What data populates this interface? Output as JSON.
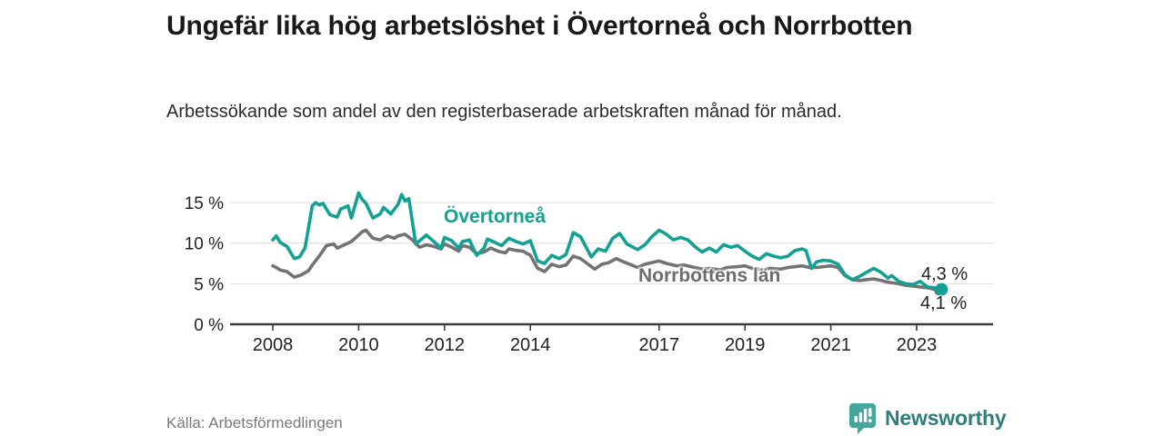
{
  "header": {
    "title": "Ungefär lika hög arbetslöshet i Övertorneå och Norrbotten",
    "subtitle": "Arbetssökande som andel av den registerbaserade arbetskraften månad för månad."
  },
  "footer": {
    "source": "Källa: Arbetsförmedlingen",
    "brand_name": "Newsworthy",
    "brand_icon": "bar-chart-speech-bubble-icon"
  },
  "colors": {
    "accent_teal": "#12a192",
    "series_gray": "#737373",
    "axis": "#3a3a3a",
    "grid": "#dcdcdc",
    "tick_text": "#222222",
    "brand_teal": "#45a69b",
    "brand_text": "#317e79"
  },
  "chart_data": {
    "type": "line",
    "x_unit": "year (monthly observations)",
    "ylabel": "",
    "xlabel": "",
    "ylim": [
      0,
      17
    ],
    "yticks": [
      0,
      5,
      10,
      15
    ],
    "ytick_labels": [
      "0 %",
      "5 %",
      "10 %",
      "15 %"
    ],
    "xticks": [
      2008,
      2010,
      2012,
      2014,
      2017,
      2019,
      2021,
      2023
    ],
    "grid": "horizontal",
    "legend": "inline-labels",
    "series": [
      {
        "name": "Övertorneå",
        "color": "#12a192",
        "end_label": "4,3 %",
        "end_value": 4.3,
        "points": [
          [
            2008.0,
            10.4
          ],
          [
            2008.08,
            10.9
          ],
          [
            2008.17,
            10.1
          ],
          [
            2008.33,
            9.6
          ],
          [
            2008.5,
            8.1
          ],
          [
            2008.62,
            8.3
          ],
          [
            2008.75,
            9.4
          ],
          [
            2008.92,
            14.6
          ],
          [
            2009.0,
            15.0
          ],
          [
            2009.08,
            14.7
          ],
          [
            2009.17,
            14.9
          ],
          [
            2009.33,
            13.5
          ],
          [
            2009.5,
            13.2
          ],
          [
            2009.58,
            14.2
          ],
          [
            2009.75,
            14.6
          ],
          [
            2009.83,
            13.1
          ],
          [
            2010.0,
            16.2
          ],
          [
            2010.08,
            15.4
          ],
          [
            2010.17,
            14.9
          ],
          [
            2010.33,
            13.1
          ],
          [
            2010.5,
            13.6
          ],
          [
            2010.58,
            14.4
          ],
          [
            2010.75,
            13.6
          ],
          [
            2010.92,
            14.8
          ],
          [
            2011.0,
            16.0
          ],
          [
            2011.08,
            15.2
          ],
          [
            2011.17,
            15.5
          ],
          [
            2011.33,
            9.9
          ],
          [
            2011.42,
            10.3
          ],
          [
            2011.58,
            11.0
          ],
          [
            2011.75,
            10.2
          ],
          [
            2011.92,
            9.4
          ],
          [
            2012.0,
            10.7
          ],
          [
            2012.17,
            10.3
          ],
          [
            2012.33,
            9.4
          ],
          [
            2012.42,
            10.2
          ],
          [
            2012.58,
            10.4
          ],
          [
            2012.75,
            8.5
          ],
          [
            2012.92,
            9.4
          ],
          [
            2013.0,
            10.5
          ],
          [
            2013.17,
            10.1
          ],
          [
            2013.33,
            9.7
          ],
          [
            2013.5,
            10.6
          ],
          [
            2013.67,
            10.2
          ],
          [
            2013.83,
            9.9
          ],
          [
            2014.0,
            10.3
          ],
          [
            2014.17,
            7.8
          ],
          [
            2014.33,
            7.5
          ],
          [
            2014.5,
            8.5
          ],
          [
            2014.67,
            8.1
          ],
          [
            2014.83,
            8.6
          ],
          [
            2015.0,
            11.3
          ],
          [
            2015.17,
            10.8
          ],
          [
            2015.42,
            8.3
          ],
          [
            2015.58,
            9.3
          ],
          [
            2015.75,
            9.0
          ],
          [
            2015.92,
            10.6
          ],
          [
            2016.08,
            11.2
          ],
          [
            2016.25,
            9.9
          ],
          [
            2016.5,
            9.2
          ],
          [
            2016.67,
            9.8
          ],
          [
            2016.83,
            10.8
          ],
          [
            2017.0,
            11.6
          ],
          [
            2017.17,
            11.1
          ],
          [
            2017.33,
            10.4
          ],
          [
            2017.5,
            10.7
          ],
          [
            2017.67,
            10.4
          ],
          [
            2017.83,
            9.6
          ],
          [
            2018.0,
            8.9
          ],
          [
            2018.17,
            9.4
          ],
          [
            2018.33,
            8.9
          ],
          [
            2018.5,
            9.8
          ],
          [
            2018.67,
            9.5
          ],
          [
            2018.83,
            9.7
          ],
          [
            2019.0,
            9.0
          ],
          [
            2019.17,
            8.4
          ],
          [
            2019.33,
            8.0
          ],
          [
            2019.5,
            8.7
          ],
          [
            2019.67,
            8.4
          ],
          [
            2019.83,
            8.2
          ],
          [
            2020.0,
            8.4
          ],
          [
            2020.17,
            9.1
          ],
          [
            2020.33,
            9.3
          ],
          [
            2020.42,
            9.1
          ],
          [
            2020.55,
            6.9
          ],
          [
            2020.67,
            7.7
          ],
          [
            2020.83,
            7.9
          ],
          [
            2021.0,
            7.8
          ],
          [
            2021.17,
            7.4
          ],
          [
            2021.33,
            6.1
          ],
          [
            2021.5,
            5.5
          ],
          [
            2021.67,
            5.9
          ],
          [
            2021.83,
            6.4
          ],
          [
            2022.0,
            6.9
          ],
          [
            2022.17,
            6.4
          ],
          [
            2022.33,
            5.7
          ],
          [
            2022.42,
            6.0
          ],
          [
            2022.58,
            5.3
          ],
          [
            2022.75,
            5.0
          ],
          [
            2022.92,
            4.9
          ],
          [
            2023.08,
            5.3
          ],
          [
            2023.25,
            4.6
          ],
          [
            2023.42,
            4.5
          ],
          [
            2023.58,
            4.3
          ]
        ]
      },
      {
        "name": "Norrbottens län",
        "color": "#737373",
        "end_label": "4,1 %",
        "end_value": 4.1,
        "points": [
          [
            2008.0,
            7.2
          ],
          [
            2008.08,
            7.0
          ],
          [
            2008.17,
            6.7
          ],
          [
            2008.33,
            6.5
          ],
          [
            2008.5,
            5.8
          ],
          [
            2008.67,
            6.1
          ],
          [
            2008.83,
            6.6
          ],
          [
            2008.92,
            7.3
          ],
          [
            2009.08,
            8.4
          ],
          [
            2009.25,
            9.7
          ],
          [
            2009.42,
            9.9
          ],
          [
            2009.5,
            9.4
          ],
          [
            2009.67,
            9.8
          ],
          [
            2009.83,
            10.2
          ],
          [
            2009.92,
            10.6
          ],
          [
            2010.08,
            11.4
          ],
          [
            2010.17,
            11.6
          ],
          [
            2010.33,
            10.6
          ],
          [
            2010.5,
            10.4
          ],
          [
            2010.67,
            10.9
          ],
          [
            2010.83,
            10.6
          ],
          [
            2010.92,
            10.9
          ],
          [
            2011.08,
            11.1
          ],
          [
            2011.25,
            10.4
          ],
          [
            2011.42,
            9.5
          ],
          [
            2011.58,
            9.8
          ],
          [
            2011.75,
            9.6
          ],
          [
            2011.92,
            9.3
          ],
          [
            2012.0,
            9.9
          ],
          [
            2012.17,
            9.5
          ],
          [
            2012.33,
            9.0
          ],
          [
            2012.42,
            9.7
          ],
          [
            2012.58,
            9.5
          ],
          [
            2012.75,
            8.7
          ],
          [
            2012.92,
            8.9
          ],
          [
            2013.08,
            9.4
          ],
          [
            2013.25,
            9.0
          ],
          [
            2013.42,
            8.8
          ],
          [
            2013.5,
            9.3
          ],
          [
            2013.67,
            9.1
          ],
          [
            2013.83,
            9.0
          ],
          [
            2014.0,
            8.5
          ],
          [
            2014.17,
            6.9
          ],
          [
            2014.33,
            6.5
          ],
          [
            2014.5,
            7.4
          ],
          [
            2014.67,
            7.1
          ],
          [
            2014.83,
            7.3
          ],
          [
            2015.0,
            8.4
          ],
          [
            2015.17,
            8.1
          ],
          [
            2015.5,
            6.8
          ],
          [
            2015.67,
            7.4
          ],
          [
            2015.83,
            7.6
          ],
          [
            2016.0,
            8.1
          ],
          [
            2016.17,
            7.7
          ],
          [
            2016.5,
            7.0
          ],
          [
            2016.67,
            7.4
          ],
          [
            2016.83,
            7.6
          ],
          [
            2017.0,
            7.8
          ],
          [
            2017.17,
            7.5
          ],
          [
            2017.42,
            7.2
          ],
          [
            2017.58,
            7.3
          ],
          [
            2017.83,
            7.0
          ],
          [
            2018.0,
            6.8
          ],
          [
            2018.17,
            6.9
          ],
          [
            2018.42,
            6.7
          ],
          [
            2018.58,
            7.0
          ],
          [
            2018.83,
            7.1
          ],
          [
            2019.0,
            7.2
          ],
          [
            2019.17,
            6.9
          ],
          [
            2019.42,
            6.7
          ],
          [
            2019.58,
            6.9
          ],
          [
            2019.83,
            6.8
          ],
          [
            2020.0,
            7.0
          ],
          [
            2020.17,
            7.1
          ],
          [
            2020.33,
            7.2
          ],
          [
            2020.5,
            7.0
          ],
          [
            2020.67,
            7.0
          ],
          [
            2020.83,
            7.1
          ],
          [
            2021.0,
            7.2
          ],
          [
            2021.17,
            7.0
          ],
          [
            2021.33,
            6.0
          ],
          [
            2021.5,
            5.5
          ],
          [
            2021.67,
            5.4
          ],
          [
            2021.83,
            5.5
          ],
          [
            2022.0,
            5.6
          ],
          [
            2022.17,
            5.4
          ],
          [
            2022.33,
            5.2
          ],
          [
            2022.58,
            5.0
          ],
          [
            2022.75,
            4.8
          ],
          [
            2022.92,
            4.7
          ],
          [
            2023.08,
            4.6
          ],
          [
            2023.25,
            4.5
          ],
          [
            2023.42,
            4.3
          ],
          [
            2023.58,
            4.1
          ]
        ]
      }
    ]
  }
}
